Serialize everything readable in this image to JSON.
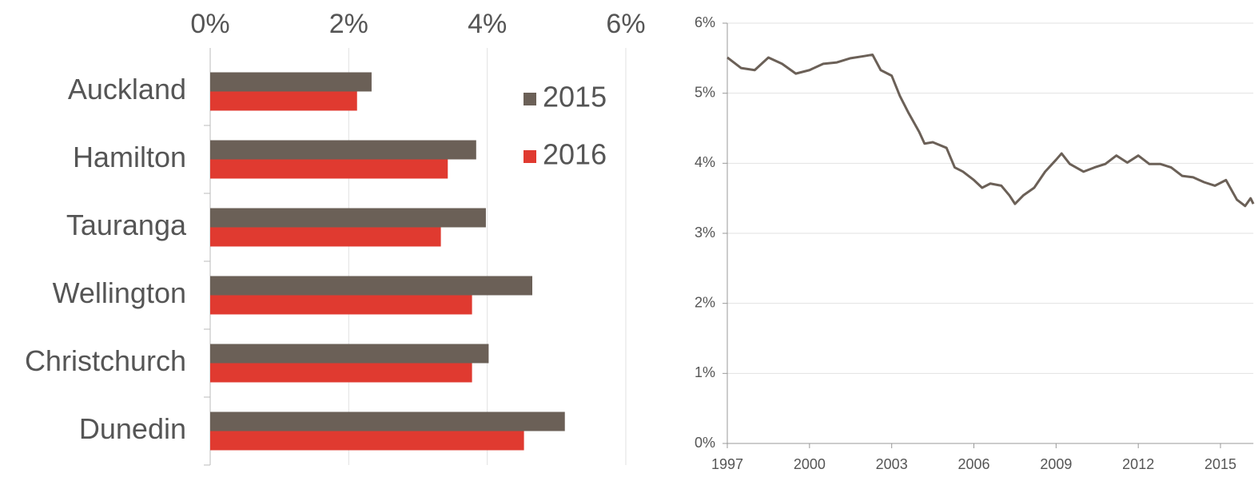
{
  "chart_data": [
    {
      "type": "hbar",
      "categories": [
        "Auckland",
        "Hamilton",
        "Tauranga",
        "Wellington",
        "Christchurch",
        "Dunedin"
      ],
      "series": [
        {
          "name": "2015",
          "color": "#6b6057",
          "values": [
            2.33,
            3.84,
            3.98,
            4.65,
            4.02,
            5.12
          ]
        },
        {
          "name": "2016",
          "color": "#e03a30",
          "values": [
            2.12,
            3.43,
            3.33,
            3.78,
            3.78,
            4.53
          ]
        }
      ],
      "xlim": [
        0,
        6
      ],
      "xticks": [
        {
          "value": 0,
          "label": "0%"
        },
        {
          "value": 2,
          "label": "2%"
        },
        {
          "value": 4,
          "label": "4%"
        },
        {
          "value": 6,
          "label": "6%"
        }
      ],
      "grid": true,
      "legend": "upper right"
    },
    {
      "type": "line",
      "color": "#6b6057",
      "x": [
        1997.0,
        1997.5,
        1998.0,
        1998.5,
        1999.0,
        1999.5,
        2000.0,
        2000.5,
        2001.0,
        2001.5,
        2002.0,
        2002.3,
        2002.6,
        2003.0,
        2003.3,
        2003.6,
        2004.0,
        2004.2,
        2004.5,
        2005.0,
        2005.3,
        2005.6,
        2006.0,
        2006.3,
        2006.6,
        2007.0,
        2007.3,
        2007.5,
        2007.8,
        2008.2,
        2008.6,
        2009.0,
        2009.2,
        2009.5,
        2010.0,
        2010.4,
        2010.8,
        2011.2,
        2011.6,
        2012.0,
        2012.4,
        2012.8,
        2013.2,
        2013.6,
        2014.0,
        2014.4,
        2014.8,
        2015.2,
        2015.6,
        2015.9,
        2016.1,
        2016.2
      ],
      "values": [
        5.51,
        5.36,
        5.33,
        5.51,
        5.42,
        5.28,
        5.33,
        5.42,
        5.44,
        5.5,
        5.53,
        5.55,
        5.33,
        5.25,
        4.96,
        4.73,
        4.45,
        4.28,
        4.3,
        4.22,
        3.94,
        3.88,
        3.76,
        3.65,
        3.71,
        3.68,
        3.54,
        3.42,
        3.54,
        3.65,
        3.88,
        4.05,
        4.14,
        3.99,
        3.88,
        3.94,
        3.99,
        4.11,
        4.01,
        4.11,
        3.99,
        3.99,
        3.94,
        3.82,
        3.8,
        3.73,
        3.68,
        3.76,
        3.48,
        3.39,
        3.5,
        3.42
      ],
      "xlim": [
        1997,
        2016.2
      ],
      "xticks": [
        1997,
        2000,
        2003,
        2006,
        2009,
        2012,
        2015
      ],
      "ylim": [
        0,
        6
      ],
      "yticks": [
        {
          "value": 0,
          "label": "0%"
        },
        {
          "value": 1,
          "label": "1%"
        },
        {
          "value": 2,
          "label": "2%"
        },
        {
          "value": 3,
          "label": "3%"
        },
        {
          "value": 4,
          "label": "4%"
        },
        {
          "value": 5,
          "label": "5%"
        },
        {
          "value": 6,
          "label": "6%"
        }
      ],
      "grid": true
    }
  ]
}
